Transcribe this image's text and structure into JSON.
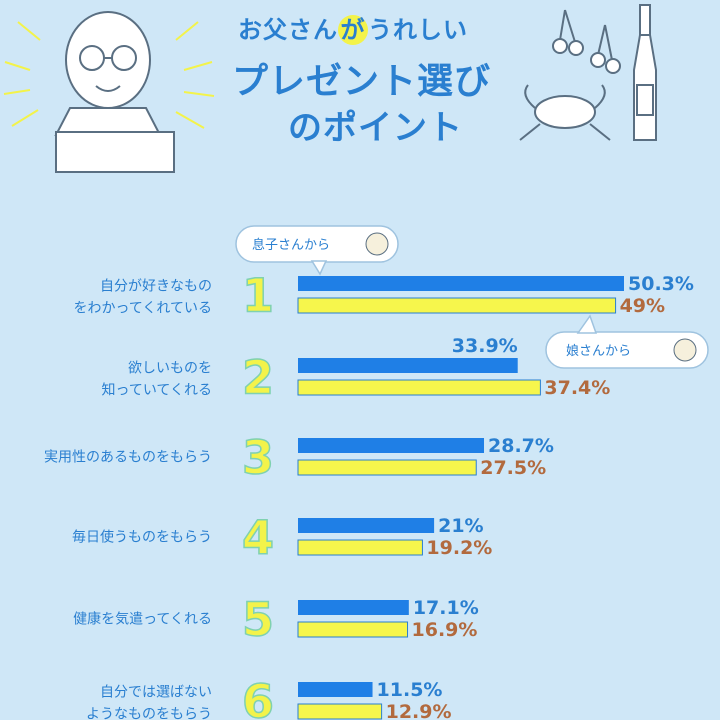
{
  "title": {
    "line1_a": "お父さん",
    "line1_b": "が",
    "line1_c": "うれしい",
    "line2": "プレゼント選び",
    "line3": "のポイント"
  },
  "bubbles": {
    "son": "息子さんから",
    "daughter": "娘さんから"
  },
  "colors": {
    "son_bar": "#1f7fe6",
    "daughter_bar": "#f6f64c",
    "son_value": "#2a7fd0",
    "daughter_value": "#b26a3e",
    "background": "#cfe7f7"
  },
  "chart_data": {
    "type": "bar",
    "orientation": "horizontal",
    "categories": [
      [
        "自分が好きなもの",
        "をわかってくれている"
      ],
      [
        "欲しいものを",
        "知っていてくれる"
      ],
      [
        "実用性のあるものをもらう"
      ],
      [
        "毎日使うものをもらう"
      ],
      [
        "健康を気遣ってくれる"
      ],
      [
        "自分では選ばない",
        "ようなものをもらう"
      ]
    ],
    "ranks": [
      "1",
      "2",
      "3",
      "4",
      "5",
      "6"
    ],
    "series": [
      {
        "name": "息子さんから",
        "values": [
          50.3,
          33.9,
          28.7,
          21,
          17.1,
          11.5
        ],
        "labels": [
          "50.3%",
          "33.9%",
          "28.7%",
          "21%",
          "17.1%",
          "11.5%"
        ]
      },
      {
        "name": "娘さんから",
        "values": [
          49,
          37.4,
          27.5,
          19.2,
          16.9,
          12.9
        ],
        "labels": [
          "49%",
          "37.4%",
          "27.5%",
          "19.2%",
          "16.9%",
          "12.9%"
        ]
      }
    ],
    "xlim": [
      0,
      50.3
    ],
    "legend": "speech-bubbles",
    "grid": false
  }
}
